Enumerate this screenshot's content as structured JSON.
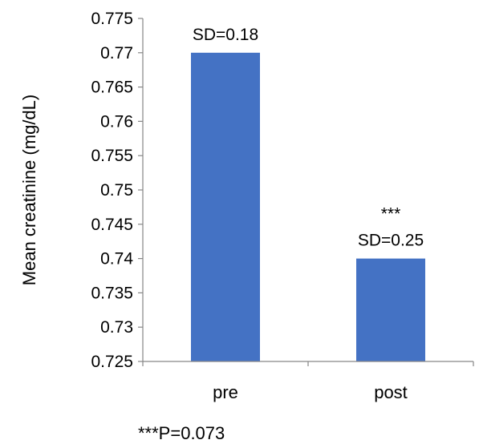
{
  "chart_data": {
    "type": "bar",
    "categories": [
      "pre",
      "post"
    ],
    "values": [
      0.77,
      0.74
    ],
    "data_labels": [
      [
        "SD=0.18"
      ],
      [
        "***",
        "SD=0.25"
      ]
    ],
    "ylabel": "Mean creatinine (mg/dL)",
    "ylim": [
      0.725,
      0.775
    ],
    "yticks": [
      "0.725",
      "0.73",
      "0.735",
      "0.74",
      "0.745",
      "0.75",
      "0.755",
      "0.76",
      "0.765",
      "0.77",
      "0.775"
    ],
    "grid": false,
    "legend": "none",
    "bar_color": "#4472C4",
    "axis_color": "#868686",
    "footnote": "***P=0.073"
  }
}
